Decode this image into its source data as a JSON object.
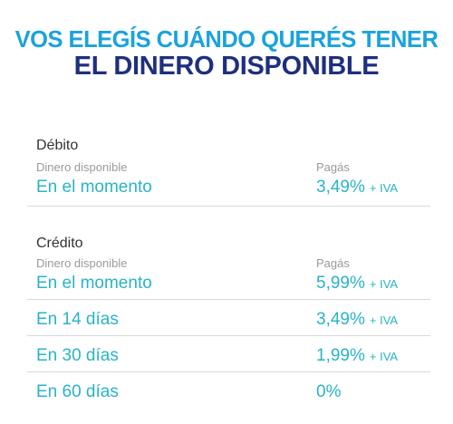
{
  "headline": {
    "line1": "VOS ELEGÍS CUÁNDO QUERÉS TENER",
    "line2": "EL DINERO DISPONIBLE"
  },
  "columns": {
    "available": "Dinero disponible",
    "pay": "Pagás"
  },
  "sections": [
    {
      "title": "Débito",
      "rows": [
        {
          "label": "En el momento",
          "rate": "3,49%",
          "tax": "+ IVA"
        }
      ]
    },
    {
      "title": "Crédito",
      "rows": [
        {
          "label": "En el momento",
          "rate": "5,99%",
          "tax": "+ IVA"
        },
        {
          "label": "En 14 días",
          "rate": "3,49%",
          "tax": "+ IVA"
        },
        {
          "label": "En 30 días",
          "rate": "1,99%",
          "tax": "+ IVA"
        },
        {
          "label": "En 60 días",
          "rate": "0%",
          "tax": ""
        }
      ]
    }
  ]
}
